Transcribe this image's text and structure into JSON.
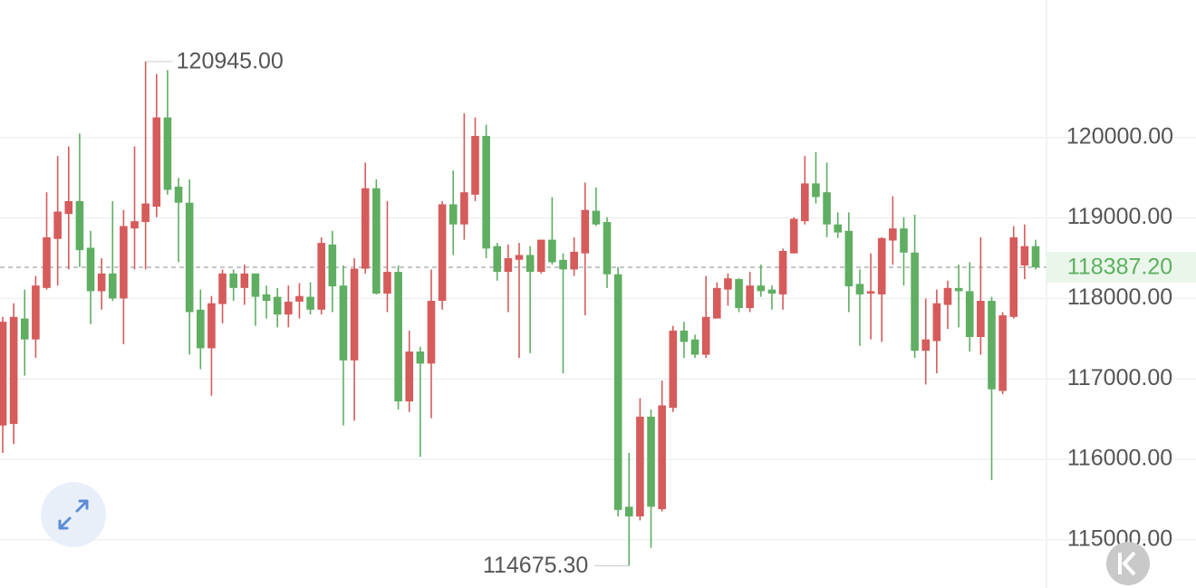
{
  "chart_data": {
    "type": "candlestick",
    "open": [
      116420,
      116440,
      117750,
      117490,
      118130,
      118740,
      119050,
      119210,
      118630,
      118090,
      118310,
      118000,
      118870,
      118950,
      119140,
      120250,
      119390,
      119190,
      117860,
      117380,
      117930,
      118310,
      118130,
      118310,
      118050,
      118020,
      117800,
      117960,
      118020,
      117860,
      118670,
      118160,
      117230,
      118370,
      119370,
      118060,
      118330,
      116720,
      117340,
      117190,
      117970,
      119170,
      118920,
      119290,
      120020,
      118650,
      118330,
      118480,
      118540,
      118330,
      118730,
      118480,
      118360,
      118560,
      119090,
      118950,
      118300,
      115410,
      115290,
      116530,
      115380,
      116640,
      117600,
      117490,
      117300,
      117750,
      118110,
      118240,
      117880,
      118160,
      118110,
      118050,
      118560,
      118960,
      119430,
      119320,
      118920,
      118840,
      118180,
      118060,
      118050,
      118720,
      118870,
      118570,
      117350,
      117470,
      117920,
      118130,
      118090,
      117520,
      117970,
      116850,
      117770,
      118410,
      118650
    ],
    "high": [
      117770,
      117940,
      118110,
      118280,
      119320,
      119770,
      119890,
      120050,
      118840,
      118500,
      119210,
      119100,
      119890,
      120945,
      120790,
      120840,
      119500,
      119480,
      118110,
      118030,
      118360,
      118360,
      118420,
      118310,
      118160,
      118130,
      118160,
      118190,
      118200,
      118760,
      118840,
      118410,
      118500,
      119690,
      119480,
      119210,
      118410,
      117600,
      117400,
      118360,
      119210,
      119590,
      120300,
      120250,
      120160,
      118690,
      118670,
      118690,
      118650,
      118730,
      119260,
      118560,
      118760,
      119440,
      119380,
      119010,
      118390,
      116080,
      116760,
      116620,
      116980,
      117660,
      117710,
      117550,
      118280,
      118200,
      118310,
      118250,
      118330,
      118420,
      118160,
      118620,
      119010,
      119770,
      119820,
      119690,
      119070,
      119070,
      118360,
      118560,
      118760,
      119270,
      119010,
      119040,
      118000,
      118110,
      118220,
      118420,
      118450,
      118760,
      118020,
      117830,
      118900,
      118920,
      118730
    ],
    "low": [
      116080,
      116190,
      117040,
      117260,
      118110,
      118160,
      118360,
      118390,
      117680,
      117860,
      117970,
      117430,
      118360,
      118360,
      119010,
      119290,
      118450,
      117300,
      117120,
      116790,
      117690,
      117970,
      117920,
      117660,
      117750,
      117640,
      117640,
      117750,
      117800,
      117800,
      117830,
      116420,
      116480,
      118310,
      118050,
      117830,
      116620,
      116590,
      116030,
      116510,
      117860,
      118540,
      118730,
      119210,
      118500,
      118220,
      117830,
      117260,
      117320,
      118310,
      118420,
      117070,
      118280,
      117790,
      118900,
      118130,
      115290,
      114675.3,
      115240,
      114900,
      115350,
      116590,
      117260,
      117260,
      117260,
      117750,
      117910,
      117830,
      117830,
      118020,
      117860,
      117860,
      118560,
      118920,
      119180,
      118760,
      118750,
      117830,
      117410,
      117490,
      117460,
      118420,
      118160,
      117260,
      116930,
      117070,
      117620,
      117640,
      117340,
      117300,
      115740,
      116810,
      117750,
      118240,
      118360
    ],
    "close": [
      117710,
      117770,
      117490,
      118160,
      118760,
      119080,
      119210,
      118600,
      118090,
      118310,
      118000,
      118900,
      118960,
      119180,
      120250,
      119350,
      119190,
      117830,
      117380,
      117940,
      118310,
      118130,
      118310,
      118020,
      117970,
      117800,
      117960,
      118030,
      117860,
      118690,
      118150,
      117230,
      118370,
      119370,
      118060,
      118330,
      116720,
      117340,
      117190,
      117970,
      119170,
      118920,
      119320,
      120020,
      118620,
      118330,
      118500,
      118540,
      118330,
      118730,
      118450,
      118360,
      118580,
      119100,
      118920,
      118300,
      115370,
      115290,
      116530,
      115410,
      116670,
      117600,
      117460,
      117300,
      117770,
      118130,
      118250,
      117880,
      118160,
      118090,
      118060,
      118590,
      118990,
      119430,
      119260,
      118920,
      118820,
      118150,
      118050,
      118090,
      118750,
      118870,
      118570,
      117350,
      117490,
      117940,
      118130,
      118090,
      117520,
      117970,
      116870,
      117790,
      118760,
      118650,
      118387.2
    ],
    "up_color": "#d65b5b",
    "down_color": "#5fae62",
    "max_label": "120945.00",
    "min_label": "114675.30",
    "last_price_label": "118387.20",
    "ylim": [
      114400,
      121710
    ],
    "yticks": [
      {
        "value": 115000,
        "label": "115000.00"
      },
      {
        "value": 116000,
        "label": "116000.00"
      },
      {
        "value": 117000,
        "label": "117000.00"
      },
      {
        "value": 118000,
        "label": "118000.00"
      },
      {
        "value": 119000,
        "label": "119000.00"
      },
      {
        "value": 120000,
        "label": "120000.00"
      }
    ],
    "grid": true
  }
}
